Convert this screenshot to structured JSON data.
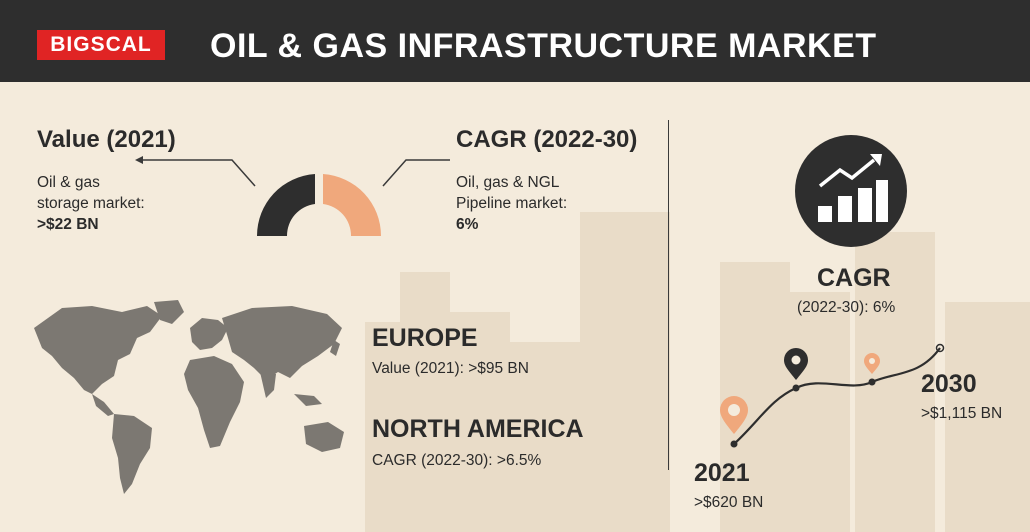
{
  "header": {
    "logo_text": "BIGSCAL",
    "title": "OIL & GAS INFRASTRUCTURE MARKET"
  },
  "value_block": {
    "heading": "Value (2021)",
    "line1": "Oil & gas",
    "line2": "storage market:",
    "value": ">$22 BN"
  },
  "cagr_block": {
    "heading": "CAGR (2022-30)",
    "line1": "Oil, gas & NGL",
    "line2": "Pipeline  market:",
    "value": "6%"
  },
  "regions": {
    "europe": {
      "name": "EUROPE",
      "detail": "Value (2021): >$95 BN"
    },
    "north_america": {
      "name": "NORTH AMERICA",
      "detail": "CAGR (2022-30): >6.5%"
    }
  },
  "growth": {
    "heading": "CAGR",
    "detail": "(2022-30): 6%",
    "start_year": "2021",
    "start_value": ">$620 BN",
    "end_year": "2030",
    "end_value": ">$1,115 BN"
  },
  "colors": {
    "background": "#f4ebdc",
    "header": "#2e2e2e",
    "logo_red": "#e02424",
    "accent_orange": "#f0a87c",
    "dark": "#2e2e2e",
    "map_gray": "#7c7872"
  },
  "icons": [
    "arrow-icon",
    "gauge-icon",
    "world-map-icon",
    "growth-chart-icon",
    "location-pin-icon"
  ]
}
